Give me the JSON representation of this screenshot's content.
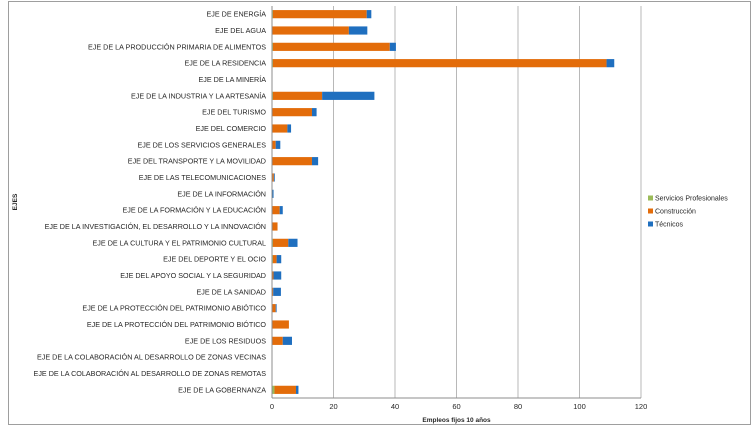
{
  "chart_data": {
    "type": "bar",
    "orientation": "horizontal",
    "stacked": true,
    "xlabel": "Empleos fijos 10 años",
    "ylabel": "EJES",
    "xlim": [
      0,
      120
    ],
    "xticks": [
      0,
      20,
      40,
      60,
      80,
      100,
      120
    ],
    "grid": true,
    "legend_position": "right",
    "categories": [
      "EJE DE ENERGÍA",
      "EJE DEL AGUA",
      "EJE DE LA PRODUCCIÓN PRIMARIA DE ALIMENTOS",
      "EJE DE LA RESIDENCIA",
      "EJE DE LA MINERÍA",
      "EJE DE LA INDUSTRIA Y LA ARTESANÍA",
      "EJE DEL TURISMO",
      "EJE DEL COMERCIO",
      "EJE DE LOS SERVICIOS GENERALES",
      "EJE DEL TRANSPORTE Y LA MOVILIDAD",
      "EJE DE LAS TELECOMUNICACIONES",
      "EJE DE LA INFORMACIÓN",
      "EJE DE LA FORMACIÓN Y LA EDUCACIÓN",
      "EJE DE LA INVESTIGACIÓN, EL DESARROLLO Y LA INNOVACIÓN",
      "EJE DE LA CULTURA Y EL PATRIMONIO CULTURAL",
      "EJE DEL DEPORTE Y EL OCIO",
      "EJE DEL APOYO SOCIAL Y LA SEGURIDAD",
      "EJE DE LA SANIDAD",
      "EJE DE LA PROTECCIÓN DEL PATRIMONIO ABIÓTICO",
      "EJE DE LA PROTECCIÓN DEL PATRIMONIO BIÓTICO",
      "EJE DE LOS RESIDUOS",
      "EJE DE LA COLABORACIÓN AL DESARROLLO DE ZONAS VECINAS",
      "EJE DE LA COLABORACIÓN AL DESARROLLO DE ZONAS REMOTAS",
      "EJE DE LA GOBERNANZA"
    ],
    "series": [
      {
        "name": "Servicios Profesionales",
        "color": "#9bbb59",
        "values": [
          0.3,
          0,
          0.3,
          0.3,
          0,
          0.3,
          0,
          0,
          0,
          0,
          0,
          0,
          0,
          0,
          0.3,
          0.3,
          0,
          0,
          0,
          0,
          0,
          0,
          0,
          0.8
        ]
      },
      {
        "name": "Construcción",
        "color": "#e36c0a",
        "values": [
          30.5,
          25,
          38,
          108.5,
          0,
          16,
          13,
          5,
          1.2,
          13,
          0.6,
          0,
          2.5,
          1.8,
          5,
          1.2,
          0.5,
          0.4,
          1.2,
          5.5,
          3.5,
          0,
          0,
          7
        ]
      },
      {
        "name": "Técnicos",
        "color": "#1f6fbf",
        "values": [
          1.5,
          6,
          2,
          2.5,
          0,
          17,
          1.5,
          1.2,
          1.5,
          2,
          0.3,
          0.5,
          1,
          0,
          3,
          1.5,
          2.5,
          2.5,
          0.3,
          0,
          3,
          0,
          0,
          0.8
        ]
      }
    ]
  }
}
